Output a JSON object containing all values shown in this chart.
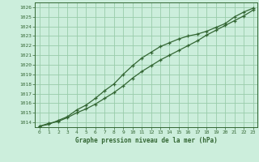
{
  "background_color": "#cceedc",
  "grid_color": "#99ccaa",
  "line_color": "#336633",
  "marker_color": "#336633",
  "xlabel": "Graphe pression niveau de la mer (hPa)",
  "xlim": [
    -0.5,
    23.5
  ],
  "ylim": [
    1013.5,
    1026.5
  ],
  "yticks": [
    1014,
    1015,
    1016,
    1017,
    1018,
    1019,
    1020,
    1021,
    1022,
    1023,
    1024,
    1025,
    1026
  ],
  "xticks": [
    0,
    1,
    2,
    3,
    4,
    5,
    6,
    7,
    8,
    9,
    10,
    11,
    12,
    13,
    14,
    15,
    16,
    17,
    18,
    19,
    20,
    21,
    22,
    23
  ],
  "line1_x": [
    0,
    1,
    2,
    3,
    4,
    5,
    6,
    7,
    8,
    9,
    10,
    11,
    12,
    13,
    14,
    15,
    16,
    17,
    18,
    19,
    20,
    21,
    22,
    23
  ],
  "line1_y": [
    1013.6,
    1013.9,
    1014.1,
    1014.5,
    1015.0,
    1015.4,
    1015.9,
    1016.5,
    1017.1,
    1017.8,
    1018.6,
    1019.3,
    1019.9,
    1020.5,
    1021.0,
    1021.5,
    1022.0,
    1022.5,
    1023.1,
    1023.6,
    1024.1,
    1024.6,
    1025.1,
    1025.7
  ],
  "line2_x": [
    0,
    1,
    2,
    3,
    4,
    5,
    6,
    7,
    8,
    9,
    10,
    11,
    12,
    13,
    14,
    15,
    16,
    17,
    18,
    19,
    20,
    21,
    22,
    23
  ],
  "line2_y": [
    1013.6,
    1013.8,
    1014.2,
    1014.6,
    1015.3,
    1015.8,
    1016.5,
    1017.3,
    1018.0,
    1019.0,
    1019.9,
    1020.7,
    1021.3,
    1021.9,
    1022.3,
    1022.7,
    1023.0,
    1023.2,
    1023.5,
    1023.9,
    1024.3,
    1025.0,
    1025.5,
    1025.9
  ]
}
